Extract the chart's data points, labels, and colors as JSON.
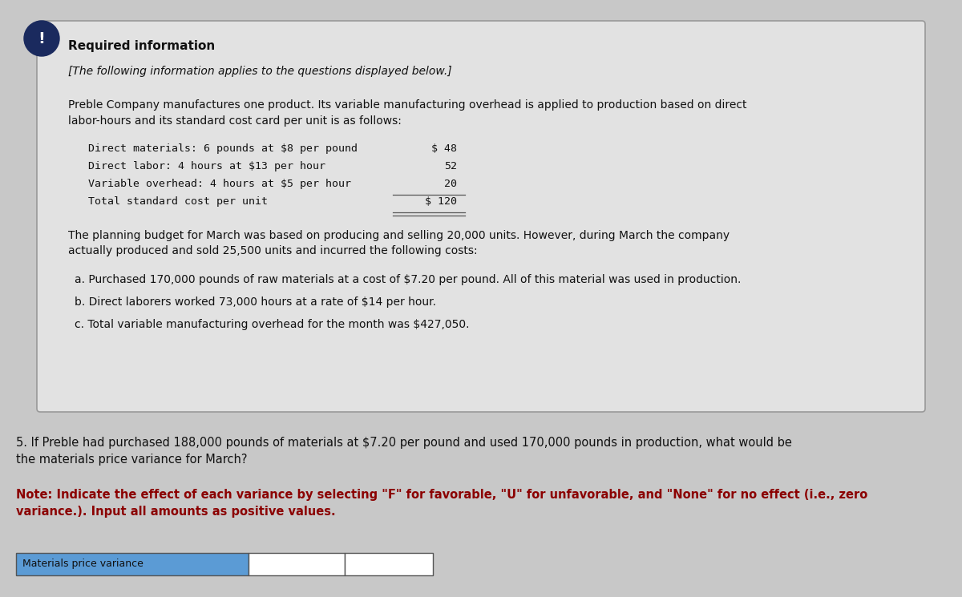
{
  "bg_color": "#c8c8c8",
  "box_bg_color": "#e2e2e2",
  "box_border_color": "#999999",
  "title_bold": "Required information",
  "subtitle_italic": "[The following information applies to the questions displayed below.]",
  "paragraph1": "Preble Company manufactures one product. Its variable manufacturing overhead is applied to production based on direct\nlabor-hours and its standard cost card per unit is as follows:",
  "cost_lines": [
    [
      "Direct materials: 6 pounds at $8 per pound",
      "$ 48"
    ],
    [
      "Direct labor: 4 hours at $13 per hour",
      "52"
    ],
    [
      "Variable overhead: 4 hours at $5 per hour",
      "20"
    ],
    [
      "Total standard cost per unit",
      "$ 120"
    ]
  ],
  "paragraph2": "The planning budget for March was based on producing and selling 20,000 units. However, during March the company\nactually produced and sold 25,500 units and incurred the following costs:",
  "bullets": [
    "a. Purchased 170,000 pounds of raw materials at a cost of $7.20 per pound. All of this material was used in production.",
    "b. Direct laborers worked 73,000 hours at a rate of $14 per hour.",
    "c. Total variable manufacturing overhead for the month was $427,050."
  ],
  "question_text": "5. If Preble had purchased 188,000 pounds of materials at $7.20 per pound and used 170,000 pounds in production, what would be\nthe materials price variance for March?",
  "note_text": "Note: Indicate the effect of each variance by selecting \"F\" for favorable, \"U\" for unfavorable, and \"None\" for no effect (i.e., zero\nvariance.). Input all amounts as positive values.",
  "row_label": "Materials price variance",
  "row_label_bg": "#5b9bd5",
  "exclamation_bg": "#1a2a5e",
  "exclamation_text": "!",
  "font_mono": "monospace",
  "font_sans": "DejaVu Sans"
}
